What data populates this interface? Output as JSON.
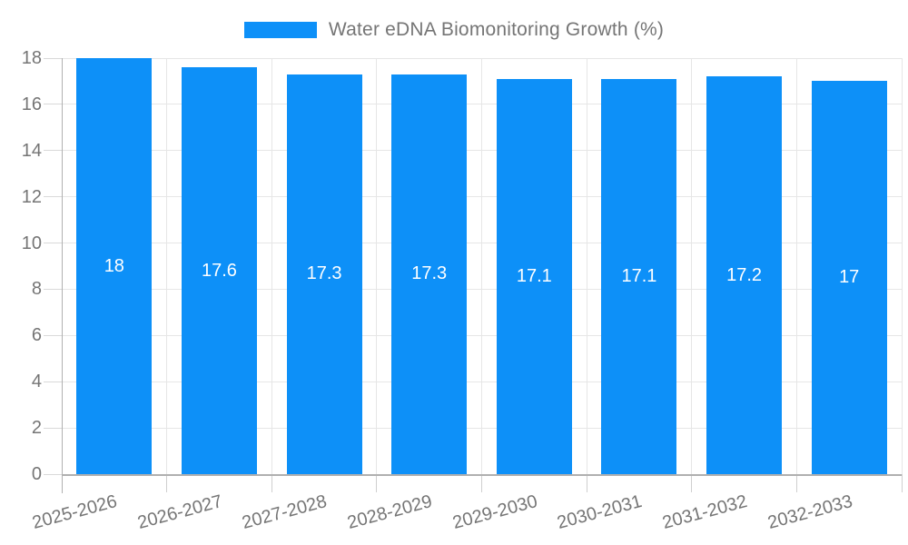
{
  "legend": {
    "label": "Water eDNA Biomonitoring Growth (%)",
    "swatch_color": "#0d90f8"
  },
  "chart_data": {
    "type": "bar",
    "title": "Water eDNA Biomonitoring Growth (%)",
    "categories": [
      "2025-2026",
      "2026-2027",
      "2027-2028",
      "2028-2029",
      "2029-2030",
      "2030-2031",
      "2031-2032",
      "2032-2033"
    ],
    "values": [
      18,
      17.6,
      17.3,
      17.3,
      17.1,
      17.1,
      17.2,
      17
    ],
    "data_labels": [
      "18",
      "17.6",
      "17.3",
      "17.3",
      "17.1",
      "17.1",
      "17.2",
      "17"
    ],
    "xlabel": "",
    "ylabel": "",
    "ylim": [
      0,
      18
    ],
    "yticks": [
      0,
      2,
      4,
      6,
      8,
      10,
      12,
      14,
      16,
      18
    ],
    "grid": true,
    "legend_position": "top-center",
    "bar_color": "#0d90f8",
    "value_label_color": "#ffffff",
    "axis_text_color": "#757575"
  },
  "colors": {
    "bar": "#0d90f8",
    "gridline": "#e6e6e6",
    "axis": "#b0b0b0",
    "tick": "#cfcfcf",
    "text": "#757575",
    "background": "#ffffff"
  }
}
